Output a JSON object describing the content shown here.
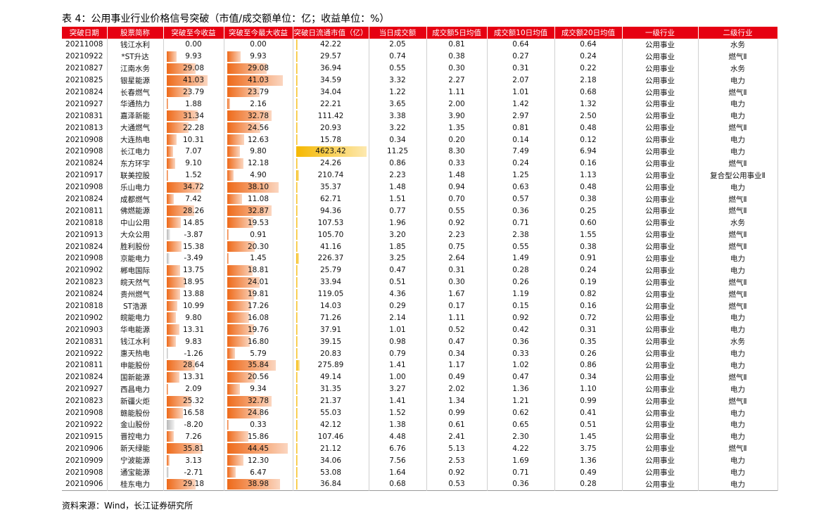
{
  "title": "表 4：公用事业行业价格信号突破（市值/成交额单位：亿；收益单位：%）",
  "table": {
    "columns": [
      "突破日期",
      "股票简称",
      "突破至今收益",
      "突破至今最大收益",
      "突破日流通市值（亿）",
      "当日成交额",
      "成交额5日均值",
      "成交额10日均值",
      "成交额20日均值",
      "一级行业",
      "二级行业"
    ],
    "rows": [
      [
        "20211008",
        "钱江水利",
        "0.00",
        "0.00",
        "42.22",
        "2.05",
        "0.81",
        "0.64",
        "0.64",
        "公用事业",
        "水务"
      ],
      [
        "20210922",
        "*ST升达",
        "9.93",
        "9.93",
        "29.57",
        "0.74",
        "0.38",
        "0.27",
        "0.24",
        "公用事业",
        "燃气Ⅱ"
      ],
      [
        "20210827",
        "江南水务",
        "29.08",
        "29.08",
        "36.94",
        "0.55",
        "0.30",
        "0.31",
        "0.22",
        "公用事业",
        "水务"
      ],
      [
        "20210825",
        "银星能源",
        "41.03",
        "41.03",
        "34.59",
        "3.32",
        "2.27",
        "2.07",
        "2.18",
        "公用事业",
        "电力"
      ],
      [
        "20210824",
        "长春燃气",
        "23.79",
        "23.79",
        "34.04",
        "1.22",
        "1.11",
        "1.01",
        "0.68",
        "公用事业",
        "燃气Ⅱ"
      ],
      [
        "20210927",
        "华通热力",
        "1.88",
        "2.16",
        "22.21",
        "3.65",
        "2.00",
        "1.42",
        "1.32",
        "公用事业",
        "电力"
      ],
      [
        "20210831",
        "嘉泽新能",
        "31.34",
        "32.78",
        "111.42",
        "3.38",
        "3.90",
        "2.97",
        "2.50",
        "公用事业",
        "电力"
      ],
      [
        "20210813",
        "大通燃气",
        "22.28",
        "24.56",
        "20.93",
        "3.22",
        "1.35",
        "0.81",
        "0.48",
        "公用事业",
        "燃气Ⅱ"
      ],
      [
        "20210908",
        "大连热电",
        "10.31",
        "12.63",
        "15.78",
        "0.34",
        "0.20",
        "0.14",
        "0.12",
        "公用事业",
        "电力"
      ],
      [
        "20210908",
        "长江电力",
        "7.07",
        "9.80",
        "4623.42",
        "11.25",
        "8.30",
        "7.49",
        "6.94",
        "公用事业",
        "电力"
      ],
      [
        "20210824",
        "东方环宇",
        "9.10",
        "12.18",
        "24.26",
        "0.86",
        "0.33",
        "0.24",
        "0.16",
        "公用事业",
        "燃气Ⅱ"
      ],
      [
        "20210917",
        "联美控股",
        "1.52",
        "4.90",
        "210.74",
        "2.23",
        "1.48",
        "1.25",
        "1.13",
        "公用事业",
        "复合型公用事业Ⅱ"
      ],
      [
        "20210908",
        "乐山电力",
        "34.72",
        "38.10",
        "35.37",
        "1.48",
        "0.94",
        "0.63",
        "0.48",
        "公用事业",
        "电力"
      ],
      [
        "20210824",
        "成都燃气",
        "7.42",
        "11.08",
        "62.71",
        "1.51",
        "0.70",
        "0.57",
        "0.38",
        "公用事业",
        "燃气Ⅱ"
      ],
      [
        "20210811",
        "佛燃能源",
        "28.26",
        "32.87",
        "94.36",
        "0.77",
        "0.55",
        "0.36",
        "0.25",
        "公用事业",
        "燃气Ⅱ"
      ],
      [
        "20210818",
        "中山公用",
        "14.85",
        "19.53",
        "107.53",
        "1.96",
        "0.92",
        "0.71",
        "0.60",
        "公用事业",
        "水务"
      ],
      [
        "20210913",
        "大众公用",
        "-3.87",
        "0.91",
        "105.70",
        "3.20",
        "2.23",
        "2.38",
        "1.55",
        "公用事业",
        "燃气Ⅱ"
      ],
      [
        "20210824",
        "胜利股份",
        "15.38",
        "20.30",
        "41.16",
        "1.85",
        "0.75",
        "0.55",
        "0.38",
        "公用事业",
        "燃气Ⅱ"
      ],
      [
        "20210908",
        "京能电力",
        "-3.49",
        "1.45",
        "226.37",
        "3.25",
        "2.64",
        "1.49",
        "0.91",
        "公用事业",
        "电力"
      ],
      [
        "20210902",
        "郴电国际",
        "13.75",
        "18.81",
        "25.79",
        "0.47",
        "0.31",
        "0.28",
        "0.24",
        "公用事业",
        "电力"
      ],
      [
        "20210823",
        "皖天然气",
        "18.95",
        "24.01",
        "33.94",
        "0.51",
        "0.30",
        "0.26",
        "0.19",
        "公用事业",
        "燃气Ⅱ"
      ],
      [
        "20210824",
        "贵州燃气",
        "13.88",
        "19.81",
        "119.05",
        "4.36",
        "1.67",
        "1.19",
        "0.82",
        "公用事业",
        "燃气Ⅱ"
      ],
      [
        "20210818",
        "ST浩源",
        "10.99",
        "17.26",
        "14.03",
        "0.29",
        "0.17",
        "0.15",
        "0.16",
        "公用事业",
        "燃气Ⅱ"
      ],
      [
        "20210902",
        "皖能电力",
        "9.80",
        "16.08",
        "71.26",
        "2.14",
        "1.11",
        "0.92",
        "0.72",
        "公用事业",
        "电力"
      ],
      [
        "20210903",
        "华电能源",
        "13.31",
        "19.76",
        "37.91",
        "1.01",
        "0.52",
        "0.42",
        "0.31",
        "公用事业",
        "电力"
      ],
      [
        "20210831",
        "钱江水利",
        "9.83",
        "16.80",
        "39.15",
        "0.98",
        "0.47",
        "0.36",
        "0.35",
        "公用事业",
        "水务"
      ],
      [
        "20210922",
        "惠天热电",
        "-1.26",
        "5.79",
        "20.83",
        "0.79",
        "0.34",
        "0.33",
        "0.26",
        "公用事业",
        "电力"
      ],
      [
        "20210811",
        "申能股份",
        "28.64",
        "35.84",
        "275.89",
        "1.41",
        "1.17",
        "1.02",
        "0.86",
        "公用事业",
        "电力"
      ],
      [
        "20210824",
        "国新能源",
        "13.31",
        "20.56",
        "49.14",
        "1.00",
        "0.49",
        "0.47",
        "0.34",
        "公用事业",
        "燃气Ⅱ"
      ],
      [
        "20210927",
        "西昌电力",
        "2.09",
        "9.34",
        "31.35",
        "3.27",
        "2.02",
        "1.36",
        "1.10",
        "公用事业",
        "电力"
      ],
      [
        "20210823",
        "新疆火炬",
        "25.32",
        "32.78",
        "21.37",
        "1.41",
        "1.34",
        "1.21",
        "0.99",
        "公用事业",
        "燃气Ⅱ"
      ],
      [
        "20210908",
        "赣能股份",
        "16.58",
        "24.86",
        "55.03",
        "1.52",
        "0.99",
        "0.62",
        "0.41",
        "公用事业",
        "电力"
      ],
      [
        "20210922",
        "金山股份",
        "-8.20",
        "0.33",
        "42.12",
        "1.38",
        "0.61",
        "0.65",
        "0.51",
        "公用事业",
        "电力"
      ],
      [
        "20210915",
        "晋控电力",
        "7.26",
        "15.86",
        "107.46",
        "4.48",
        "2.41",
        "2.30",
        "1.45",
        "公用事业",
        "电力"
      ],
      [
        "20210906",
        "新天绿能",
        "35.81",
        "44.45",
        "21.12",
        "6.76",
        "5.13",
        "4.22",
        "3.75",
        "公用事业",
        "燃气Ⅱ"
      ],
      [
        "20210909",
        "宁波能源",
        "3.13",
        "12.30",
        "34.06",
        "7.56",
        "2.53",
        "1.69",
        "1.36",
        "公用事业",
        "电力"
      ],
      [
        "20210908",
        "通宝能源",
        "-2.71",
        "6.47",
        "53.08",
        "1.64",
        "0.92",
        "0.71",
        "0.49",
        "公用事业",
        "电力"
      ],
      [
        "20210906",
        "桂东电力",
        "29.18",
        "38.98",
        "36.84",
        "0.68",
        "0.53",
        "0.36",
        "0.28",
        "公用事业",
        "电力"
      ]
    ]
  },
  "source": "资料来源：Wind，长江证券研究所"
}
